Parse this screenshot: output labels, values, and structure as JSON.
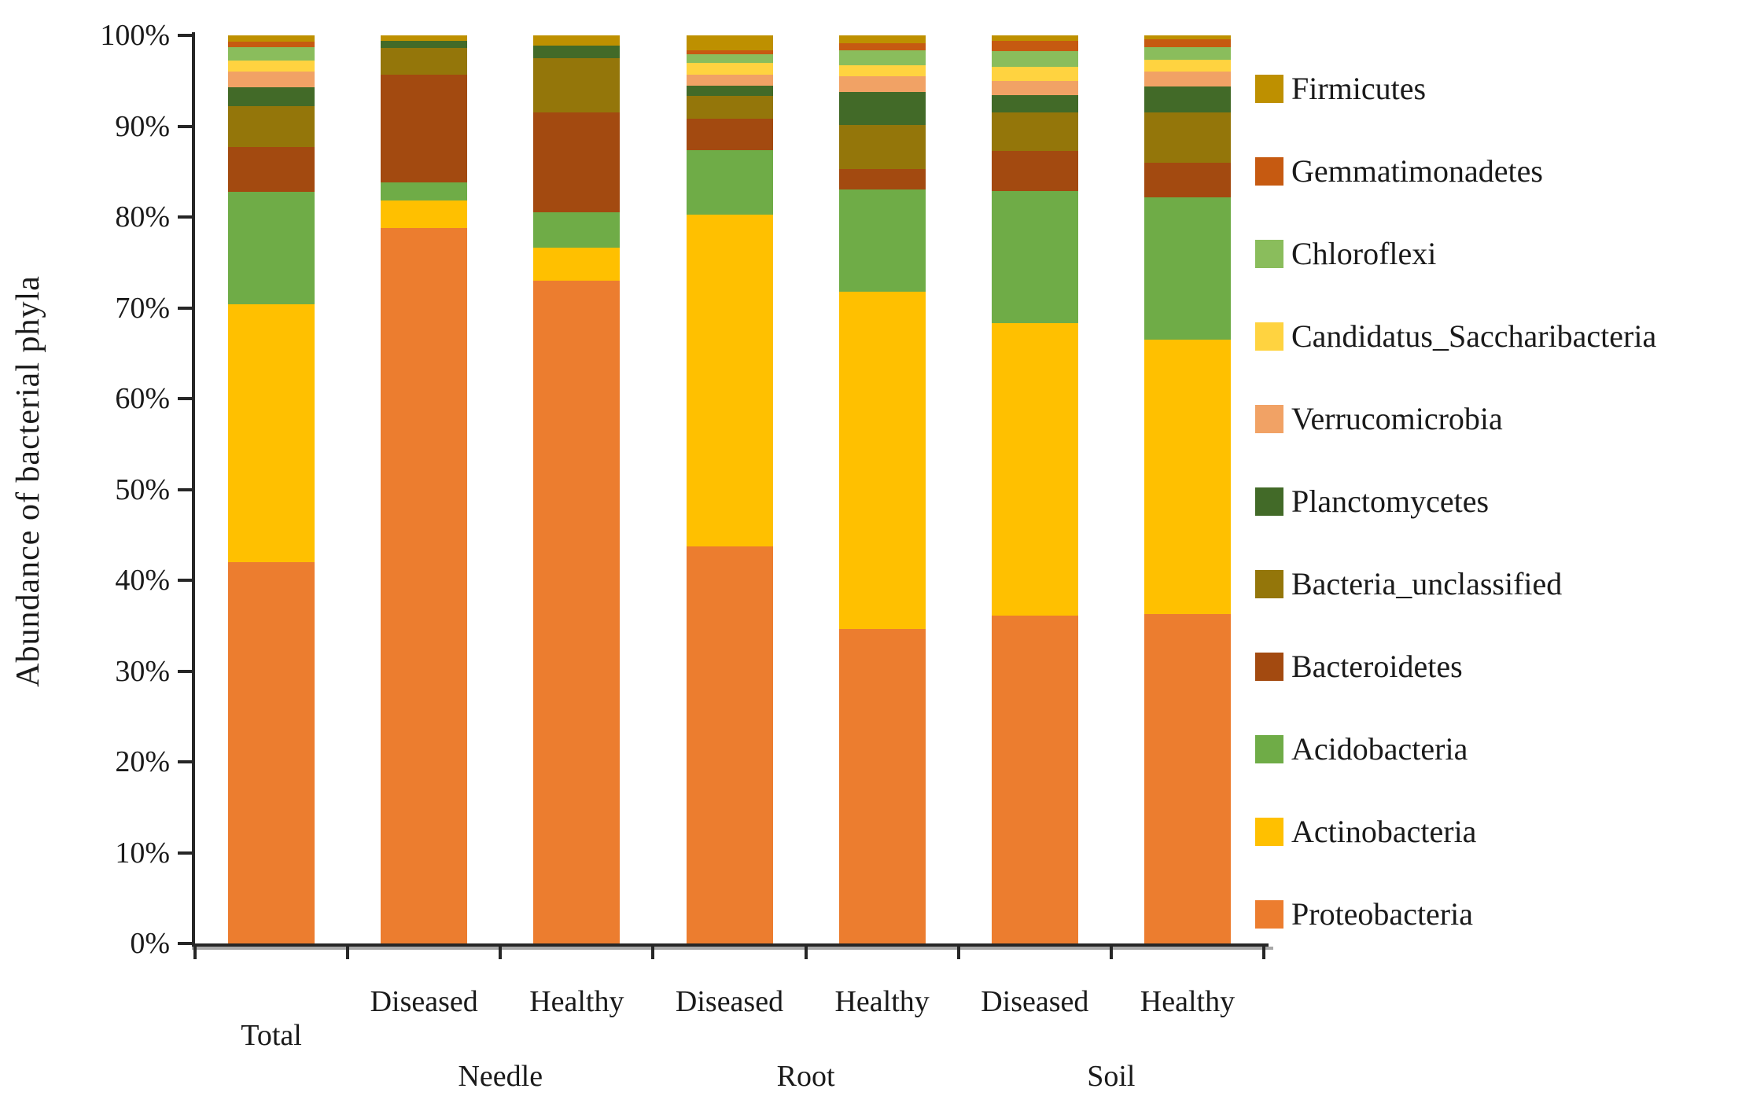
{
  "chart_data": {
    "type": "bar",
    "stacked": true,
    "orientation": "vertical",
    "ylabel": "Abundance of bacterial phyla",
    "ylim": [
      0,
      100
    ],
    "ytick_step": 10,
    "ytick_labels": [
      "0%",
      "10%",
      "20%",
      "30%",
      "40%",
      "50%",
      "60%",
      "70%",
      "80%",
      "90%",
      "100%"
    ],
    "categories": [
      "Total",
      "Diseased",
      "Healthy",
      "Diseased",
      "Healthy",
      "Diseased",
      "Healthy"
    ],
    "groups": [
      {
        "label": "Needle",
        "span_categories": [
          "Diseased",
          "Healthy"
        ]
      },
      {
        "label": "Root",
        "span_categories": [
          "Diseased",
          "Healthy"
        ]
      },
      {
        "label": "Soil",
        "span_categories": [
          "Diseased",
          "Healthy"
        ]
      }
    ],
    "grid": false,
    "legend_position": "right",
    "legend_order": "top-of-stack-first",
    "series": [
      {
        "name": "Proteobacteria",
        "color": "#EC7D2F",
        "values": [
          42.0,
          78.8,
          73.0,
          43.7,
          34.6,
          36.1,
          36.3
        ]
      },
      {
        "name": "Actinobacteria",
        "color": "#FFC000",
        "values": [
          28.4,
          3.0,
          3.6,
          36.6,
          37.2,
          32.2,
          30.2
        ]
      },
      {
        "name": "Acidobacteria",
        "color": "#6FAC47",
        "values": [
          12.4,
          2.0,
          3.9,
          7.1,
          11.2,
          14.6,
          15.7
        ]
      },
      {
        "name": "Bacteroidetes",
        "color": "#A34A10",
        "values": [
          4.9,
          11.9,
          11.0,
          3.4,
          2.3,
          4.4,
          3.8
        ]
      },
      {
        "name": "Bacteria_unclassified",
        "color": "#94760A",
        "values": [
          4.5,
          2.9,
          6.0,
          2.5,
          4.8,
          4.2,
          5.5
        ]
      },
      {
        "name": "Planctomycetes",
        "color": "#426A28",
        "values": [
          2.1,
          0.8,
          1.4,
          1.2,
          3.7,
          1.9,
          2.9
        ]
      },
      {
        "name": "Verrucomicrobia",
        "color": "#F1A265",
        "values": [
          1.7,
          0.0,
          0.0,
          1.2,
          1.7,
          1.6,
          1.6
        ]
      },
      {
        "name": "Candidatus_Saccharibacteria",
        "color": "#FFD340",
        "values": [
          1.2,
          0.0,
          0.0,
          1.3,
          1.2,
          1.5,
          1.3
        ]
      },
      {
        "name": "Chloroflexi",
        "color": "#8ABD5C",
        "values": [
          1.5,
          0.0,
          0.0,
          0.9,
          1.7,
          1.8,
          1.4
        ]
      },
      {
        "name": "Gemmatimonadetes",
        "color": "#C65A11",
        "values": [
          0.6,
          0.0,
          0.0,
          0.5,
          0.7,
          1.1,
          0.9
        ]
      },
      {
        "name": "Firmicutes",
        "color": "#BE9000",
        "values": [
          0.7,
          0.6,
          1.1,
          1.6,
          0.9,
          0.6,
          0.4
        ]
      }
    ]
  }
}
